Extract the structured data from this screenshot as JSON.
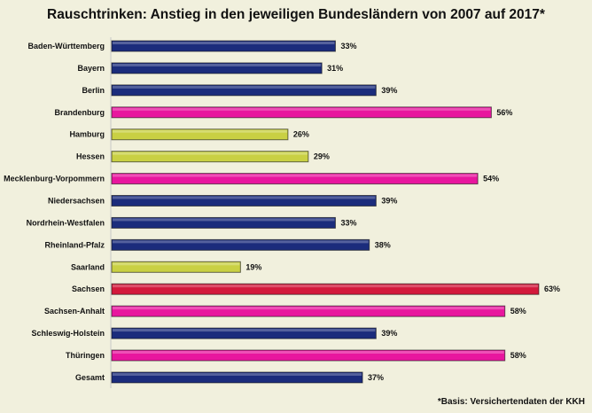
{
  "chart_data": {
    "type": "bar",
    "orientation": "horizontal",
    "title": "Rauschtrinken: Anstieg in den jeweiligen Bundesländern von 2007 auf 2017*",
    "footnote": "*Basis: Versichertendaten der KKH",
    "categories": [
      "Baden-Württemberg",
      "Bayern",
      "Berlin",
      "Brandenburg",
      "Hamburg",
      "Hessen",
      "Mecklenburg-Vorpommern",
      "Niedersachsen",
      "Nordrhein-Westfalen",
      "Rheinland-Pfalz",
      "Saarland",
      "Sachsen",
      "Sachsen-Anhalt",
      "Schleswig-Holstein",
      "Thüringen",
      "Gesamt"
    ],
    "values": [
      33,
      31,
      39,
      56,
      26,
      29,
      54,
      39,
      33,
      38,
      19,
      63,
      58,
      39,
      58,
      37
    ],
    "data_labels": [
      "33%",
      "31%",
      "39%",
      "56%",
      "26%",
      "29%",
      "54%",
      "39%",
      "33%",
      "38%",
      "19%",
      "63%",
      "58%",
      "39%",
      "58%",
      "37%"
    ],
    "colors": [
      "#1b2c7c",
      "#1b2c7c",
      "#1b2c7c",
      "#e8169e",
      "#c9d043",
      "#c9d043",
      "#e8169e",
      "#1b2c7c",
      "#1b2c7c",
      "#1b2c7c",
      "#c9d043",
      "#d3193b",
      "#e8169e",
      "#1b2c7c",
      "#e8169e",
      "#1b2c7c"
    ],
    "unit": "%",
    "grid": false,
    "legend": "none"
  }
}
